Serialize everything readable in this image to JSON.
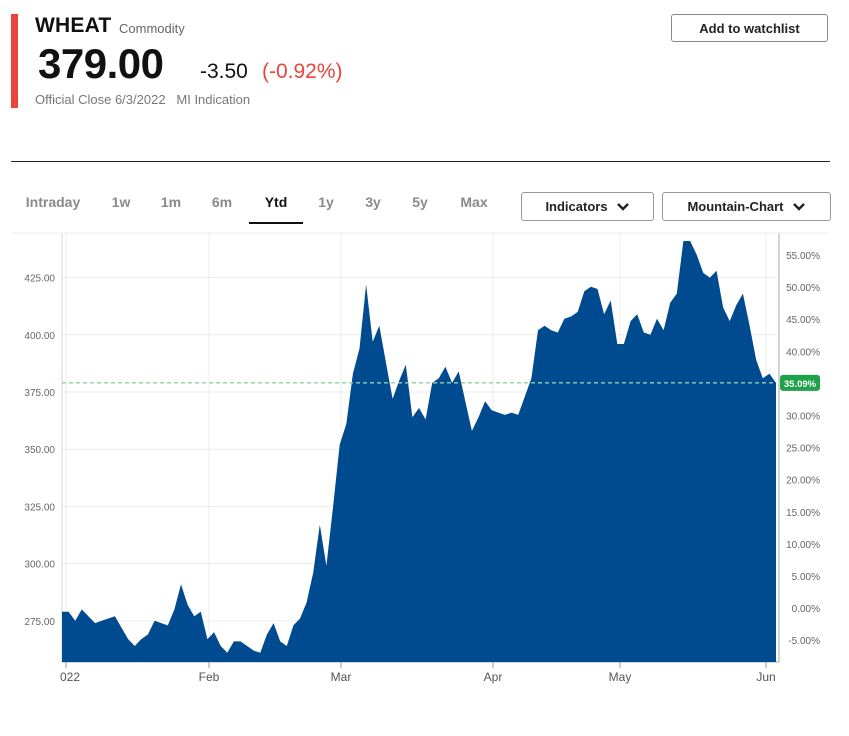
{
  "header": {
    "symbol": "WHEAT",
    "symbol_type": "Commodity",
    "price": "379.00",
    "change": "-3.50",
    "change_pct": "(-0.92%)",
    "close_info": "Official Close 6/3/2022   MI Indication",
    "accent_color": "#e8453c"
  },
  "actions": {
    "watchlist_label": "Add to watchlist"
  },
  "range_tabs": [
    "Intraday",
    "1w",
    "1m",
    "6m",
    "Ytd",
    "1y",
    "3y",
    "5y",
    "Max"
  ],
  "active_tab": "Ytd",
  "dropdowns": {
    "indicators": "Indicators",
    "chart_type": "Mountain-Chart"
  },
  "chart_data": {
    "type": "area",
    "fill_color": "#004a8f",
    "x_tick_labels": [
      "022",
      "Feb",
      "Mar",
      "Apr",
      "May",
      "Jun"
    ],
    "y_left_ticks": [
      "425.00",
      "400.00",
      "375.00",
      "350.00",
      "325.00",
      "300.00",
      "275.00"
    ],
    "y_right_ticks": [
      "55.00%",
      "50.00%",
      "45.00%",
      "40.00%",
      "35.00%",
      "30.00%",
      "25.00%",
      "20.00%",
      "15.00%",
      "10.00%",
      "5.00%",
      "0.00%",
      "-5.00%"
    ],
    "ylim": [
      257,
      441
    ],
    "reference_price": 379,
    "reference_label": "35.09%",
    "grid": true,
    "series": [
      {
        "values": [
          279,
          279,
          275,
          280,
          277,
          274,
          275,
          276,
          277,
          272,
          267,
          264,
          267,
          269,
          275,
          274,
          273,
          280,
          291,
          282,
          277,
          279,
          267,
          270,
          264,
          261,
          266,
          266,
          264,
          262,
          261,
          269,
          274,
          266,
          264,
          273,
          276,
          283,
          296,
          317,
          299,
          325,
          352,
          361,
          383,
          394,
          422,
          397,
          404,
          388,
          372,
          380,
          387,
          364,
          368,
          363,
          379,
          381,
          386,
          379,
          384,
          371,
          358,
          364,
          371,
          367,
          366,
          365,
          366,
          365,
          373,
          381,
          402,
          404,
          402,
          401,
          407,
          408,
          410,
          419,
          421,
          420,
          409,
          415,
          396,
          396,
          406,
          409,
          401,
          400,
          407,
          402,
          414,
          418,
          441,
          441,
          435,
          427,
          425,
          428,
          412,
          406,
          413,
          418,
          404,
          389,
          381,
          383,
          379
        ]
      }
    ]
  }
}
